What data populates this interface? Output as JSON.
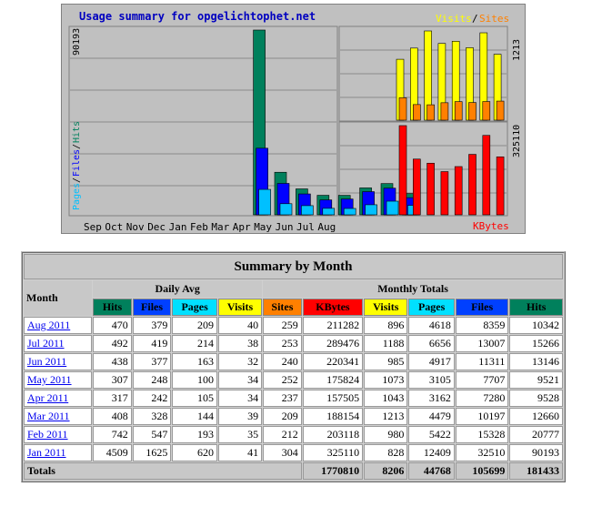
{
  "chart": {
    "title": "Usage summary for opgelichtophet.net",
    "legend_visits": "Visits",
    "legend_sep": "/",
    "legend_sites": "Sites",
    "legend_kbytes": "KBytes",
    "left_axis_pages": "Pages",
    "left_axis_files": "Files",
    "left_axis_hits": "Hits",
    "max_hits_label": "90193",
    "max_visits_label": "1213",
    "max_kbytes_label": "325110",
    "months": [
      "Sep",
      "Oct",
      "Nov",
      "Dec",
      "Jan",
      "Feb",
      "Mar",
      "Apr",
      "May",
      "Jun",
      "Jul",
      "Aug"
    ],
    "colors": {
      "hits": "#00805c",
      "files": "#0000ff",
      "pages": "#00c0ff",
      "visits": "#ffff00",
      "sites": "#ff8000",
      "kbytes": "#ff0000",
      "title": "#0000c0"
    },
    "chart_data": {
      "type": "bar",
      "categories": [
        "Sep",
        "Oct",
        "Nov",
        "Dec",
        "Jan",
        "Feb",
        "Mar",
        "Apr",
        "May",
        "Jun",
        "Jul",
        "Aug"
      ],
      "series": [
        {
          "name": "Hits",
          "values": [
            0,
            0,
            0,
            0,
            90193,
            20777,
            12660,
            9528,
            9521,
            13146,
            15266,
            10342
          ]
        },
        {
          "name": "Files",
          "values": [
            0,
            0,
            0,
            0,
            32510,
            15328,
            10197,
            7280,
            7707,
            11311,
            13007,
            8359
          ]
        },
        {
          "name": "Pages",
          "values": [
            0,
            0,
            0,
            0,
            12409,
            5422,
            4479,
            3162,
            3105,
            4917,
            6656,
            4618
          ]
        },
        {
          "name": "Visits",
          "values": [
            0,
            0,
            0,
            0,
            828,
            980,
            1213,
            1043,
            1073,
            985,
            1188,
            896
          ]
        },
        {
          "name": "Sites",
          "values": [
            0,
            0,
            0,
            0,
            304,
            212,
            209,
            237,
            252,
            240,
            253,
            259
          ]
        },
        {
          "name": "KBytes",
          "values": [
            0,
            0,
            0,
            0,
            325110,
            203118,
            188154,
            157505,
            175824,
            220341,
            289476,
            211282
          ]
        }
      ],
      "ylim_hits": [
        0,
        90193
      ],
      "ylim_visits": [
        0,
        1213
      ],
      "ylim_kbytes": [
        0,
        325110
      ]
    }
  },
  "table": {
    "title": "Summary by Month",
    "month_header": "Month",
    "daily_avg_header": "Daily Avg",
    "monthly_totals_header": "Monthly Totals",
    "col_hits": "Hits",
    "col_files": "Files",
    "col_pages": "Pages",
    "col_visits": "Visits",
    "col_sites": "Sites",
    "col_kbytes": "KBytes",
    "rows": [
      {
        "month": "Aug 2011",
        "d_hits": "470",
        "d_files": "379",
        "d_pages": "209",
        "d_visits": "40",
        "sites": "259",
        "kbytes": "211282",
        "visits": "896",
        "pages": "4618",
        "files": "8359",
        "hits": "10342"
      },
      {
        "month": "Jul 2011",
        "d_hits": "492",
        "d_files": "419",
        "d_pages": "214",
        "d_visits": "38",
        "sites": "253",
        "kbytes": "289476",
        "visits": "1188",
        "pages": "6656",
        "files": "13007",
        "hits": "15266"
      },
      {
        "month": "Jun 2011",
        "d_hits": "438",
        "d_files": "377",
        "d_pages": "163",
        "d_visits": "32",
        "sites": "240",
        "kbytes": "220341",
        "visits": "985",
        "pages": "4917",
        "files": "11311",
        "hits": "13146"
      },
      {
        "month": "May 2011",
        "d_hits": "307",
        "d_files": "248",
        "d_pages": "100",
        "d_visits": "34",
        "sites": "252",
        "kbytes": "175824",
        "visits": "1073",
        "pages": "3105",
        "files": "7707",
        "hits": "9521"
      },
      {
        "month": "Apr 2011",
        "d_hits": "317",
        "d_files": "242",
        "d_pages": "105",
        "d_visits": "34",
        "sites": "237",
        "kbytes": "157505",
        "visits": "1043",
        "pages": "3162",
        "files": "7280",
        "hits": "9528"
      },
      {
        "month": "Mar 2011",
        "d_hits": "408",
        "d_files": "328",
        "d_pages": "144",
        "d_visits": "39",
        "sites": "209",
        "kbytes": "188154",
        "visits": "1213",
        "pages": "4479",
        "files": "10197",
        "hits": "12660"
      },
      {
        "month": "Feb 2011",
        "d_hits": "742",
        "d_files": "547",
        "d_pages": "193",
        "d_visits": "35",
        "sites": "212",
        "kbytes": "203118",
        "visits": "980",
        "pages": "5422",
        "files": "15328",
        "hits": "20777"
      },
      {
        "month": "Jan 2011",
        "d_hits": "4509",
        "d_files": "1625",
        "d_pages": "620",
        "d_visits": "41",
        "sites": "304",
        "kbytes": "325110",
        "visits": "828",
        "pages": "12409",
        "files": "32510",
        "hits": "90193"
      }
    ],
    "totals": {
      "label": "Totals",
      "kbytes": "1770810",
      "visits": "8206",
      "pages": "44768",
      "files": "105699",
      "hits": "181433"
    }
  }
}
